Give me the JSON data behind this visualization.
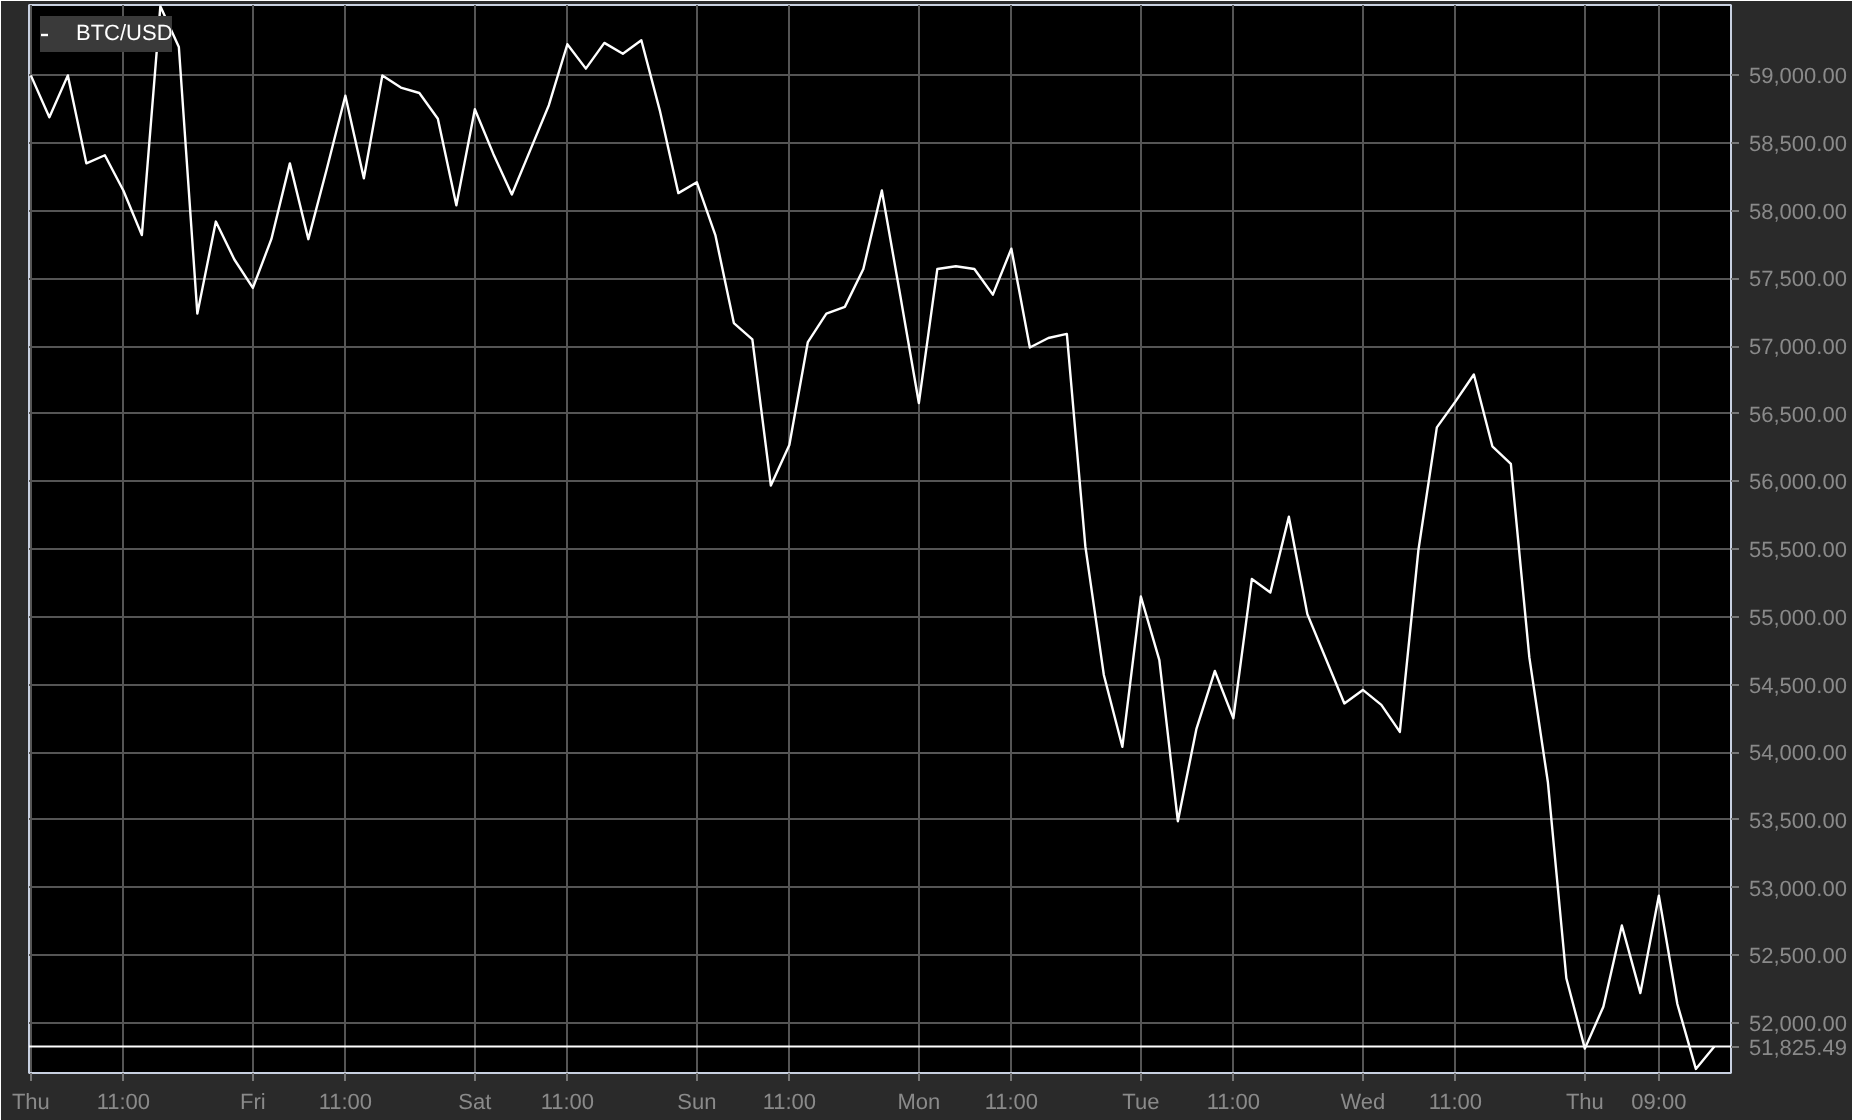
{
  "chart_data": {
    "type": "line",
    "legend": "top left",
    "grid": true,
    "marker": "none",
    "line_style": "solid",
    "ylim": [
      51630,
      59520
    ],
    "yticks": [
      {
        "value": 52000,
        "label": "52,000.00"
      },
      {
        "value": 52500,
        "label": "52,500.00"
      },
      {
        "value": 53000,
        "label": "53,000.00"
      },
      {
        "value": 53500,
        "label": "53,500.00"
      },
      {
        "value": 54000,
        "label": "54,000.00"
      },
      {
        "value": 54500,
        "label": "54,500.00"
      },
      {
        "value": 55000,
        "label": "55,000.00"
      },
      {
        "value": 55500,
        "label": "55,500.00"
      },
      {
        "value": 56000,
        "label": "56,000.00"
      },
      {
        "value": 56500,
        "label": "56,500.00"
      },
      {
        "value": 57000,
        "label": "57,000.00"
      },
      {
        "value": 57500,
        "label": "57,500.00"
      },
      {
        "value": 58000,
        "label": "58,000.00"
      },
      {
        "value": 58500,
        "label": "58,500.00"
      },
      {
        "value": 59000,
        "label": "59,000.00"
      }
    ],
    "categories": [
      "Thu",
      null,
      null,
      null,
      null,
      "11:00",
      null,
      null,
      null,
      null,
      null,
      null,
      "Fri",
      null,
      null,
      null,
      null,
      "11:00",
      null,
      null,
      null,
      null,
      null,
      null,
      "Sat",
      null,
      null,
      null,
      null,
      "11:00",
      null,
      null,
      null,
      null,
      null,
      null,
      "Sun",
      null,
      null,
      null,
      null,
      "11:00",
      null,
      null,
      null,
      null,
      null,
      null,
      "Mon",
      null,
      null,
      null,
      null,
      "11:00",
      null,
      null,
      null,
      null,
      null,
      null,
      "Tue",
      null,
      null,
      null,
      null,
      "11:00",
      null,
      null,
      null,
      null,
      null,
      null,
      "Wed",
      null,
      null,
      null,
      null,
      "11:00",
      null,
      null,
      null,
      null,
      null,
      null,
      "Thu",
      null,
      null,
      null,
      "09:00",
      null,
      null,
      null
    ],
    "ref_lines": [
      {
        "axis": "y",
        "value": 51825.49,
        "label": "51,825.49",
        "color": "#ffffff"
      }
    ],
    "series": [
      {
        "name": "BTC/USD",
        "color": "#ffffff",
        "values": [
          59000,
          58690,
          59000,
          58350,
          58410,
          58150,
          57820,
          59510,
          59210,
          57240,
          57920,
          57640,
          57430,
          57790,
          58350,
          57790,
          58310,
          58850,
          58240,
          59000,
          58910,
          58870,
          58680,
          58040,
          58750,
          58420,
          58120,
          58450,
          58780,
          59230,
          59050,
          59240,
          59160,
          59260,
          58740,
          58130,
          58210,
          57820,
          57170,
          57050,
          55970,
          56270,
          57030,
          57240,
          57290,
          57570,
          58150,
          57370,
          56580,
          57570,
          57590,
          57570,
          57380,
          57720,
          56990,
          57060,
          57090,
          55520,
          54570,
          54040,
          55150,
          54680,
          53490,
          54170,
          54600,
          54250,
          55280,
          55180,
          55740,
          55020,
          54690,
          54360,
          54460,
          54350,
          54150,
          55490,
          56400,
          56590,
          56790,
          56260,
          56130,
          54700,
          53780,
          52330,
          51810,
          52120,
          52720,
          52220,
          52940,
          52140,
          51660,
          51825.49
        ]
      }
    ]
  }
}
